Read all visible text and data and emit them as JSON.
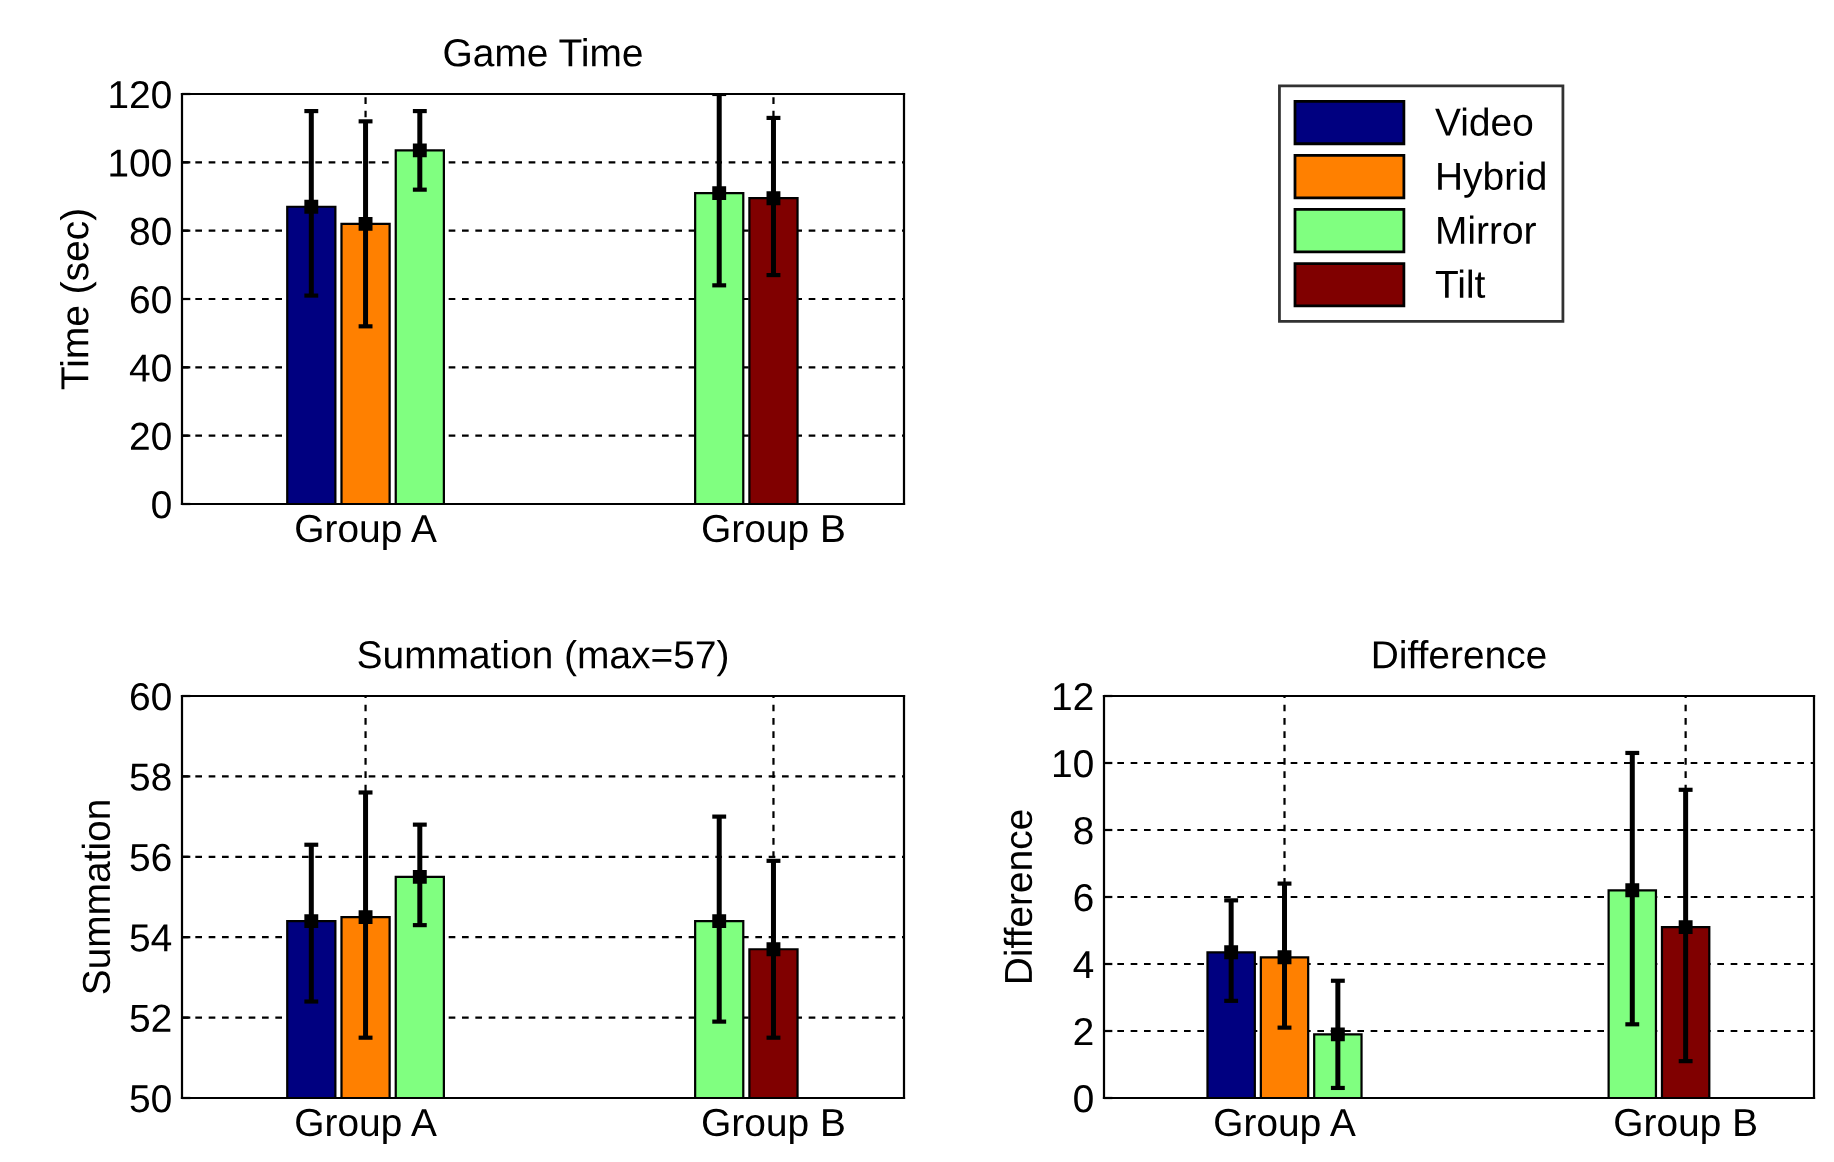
{
  "chart_data": [
    {
      "type": "bar",
      "title": "Game Time",
      "ylabel": "Time (sec)",
      "categories": [
        "Group A",
        "Group B"
      ],
      "ylim": [
        0,
        120
      ],
      "yticks": [
        0,
        20,
        40,
        60,
        80,
        100,
        120
      ],
      "grid": true,
      "marker": "square",
      "legend": "top right",
      "series": [
        {
          "name": "Video",
          "color": "#000080",
          "values": [
            87,
            null
          ],
          "errors": [
            [
              61,
              115
            ],
            null
          ]
        },
        {
          "name": "Hybrid",
          "color": "#ff8000",
          "values": [
            82,
            null
          ],
          "errors": [
            [
              52,
              112
            ],
            null
          ]
        },
        {
          "name": "Mirror",
          "color": "#80ff80",
          "values": [
            103.5,
            91
          ],
          "errors": [
            [
              92,
              115
            ],
            [
              64,
              120
            ]
          ]
        },
        {
          "name": "Tilt",
          "color": "#800000",
          "values": [
            null,
            89.5
          ],
          "errors": [
            null,
            [
              67,
              113
            ]
          ]
        }
      ]
    },
    {
      "type": "bar",
      "title": "Summation (max=57)",
      "ylabel": "Summation",
      "categories": [
        "Group A",
        "Group B"
      ],
      "ylim": [
        50,
        60
      ],
      "yticks": [
        50,
        52,
        54,
        56,
        58,
        60
      ],
      "grid": true,
      "marker": "square",
      "series": [
        {
          "color": "#000080",
          "values": [
            54.4,
            null
          ],
          "errors": [
            [
              52.4,
              56.3
            ],
            null
          ]
        },
        {
          "color": "#ff8000",
          "values": [
            54.5,
            null
          ],
          "errors": [
            [
              51.5,
              57.6
            ],
            null
          ]
        },
        {
          "color": "#80ff80",
          "values": [
            55.5,
            54.4
          ],
          "errors": [
            [
              54.3,
              56.8
            ],
            [
              51.9,
              57
            ]
          ]
        },
        {
          "color": "#800000",
          "values": [
            null,
            53.7
          ],
          "errors": [
            null,
            [
              51.5,
              55.9
            ]
          ]
        }
      ]
    },
    {
      "type": "bar",
      "title": "Difference",
      "ylabel": "Difference",
      "categories": [
        "Group A",
        "Group B"
      ],
      "ylim": [
        0,
        12
      ],
      "yticks": [
        0,
        2,
        4,
        6,
        8,
        10,
        12
      ],
      "grid": true,
      "marker": "square",
      "series": [
        {
          "color": "#000080",
          "values": [
            4.35,
            null
          ],
          "errors": [
            [
              2.9,
              5.9
            ],
            null
          ]
        },
        {
          "color": "#ff8000",
          "values": [
            4.2,
            null
          ],
          "errors": [
            [
              2.1,
              6.4
            ],
            null
          ]
        },
        {
          "color": "#80ff80",
          "values": [
            1.9,
            6.2
          ],
          "errors": [
            [
              0.3,
              3.5
            ],
            [
              2.2,
              10.3
            ]
          ]
        },
        {
          "color": "#800000",
          "values": [
            null,
            5.1
          ],
          "errors": [
            null,
            [
              1.1,
              9.2
            ]
          ]
        }
      ]
    }
  ]
}
